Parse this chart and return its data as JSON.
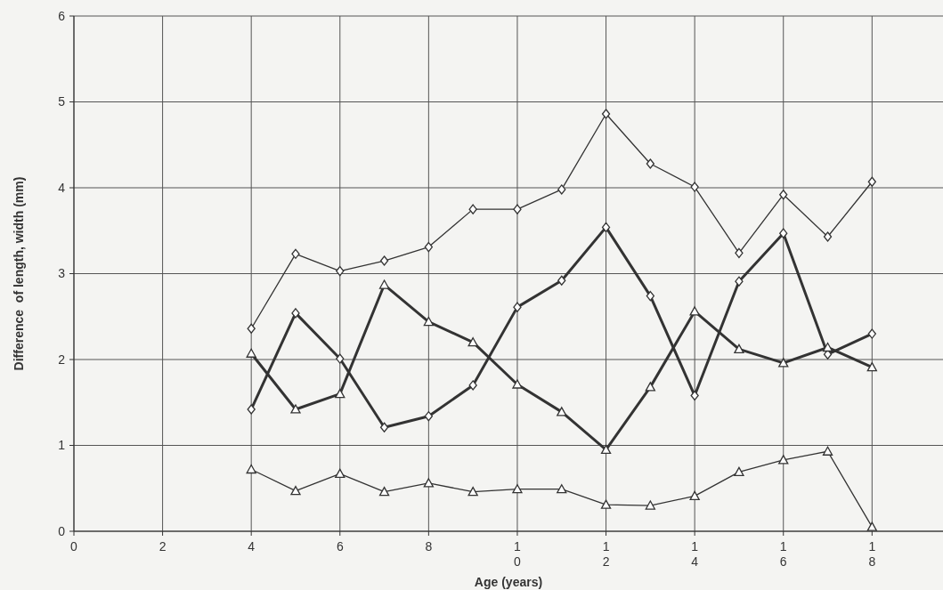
{
  "chart_data": {
    "type": "line",
    "xlabel": "Age (years)",
    "ylabel": "Difference  of length, width (mm)",
    "x": [
      4,
      5,
      6,
      7,
      8,
      9,
      10,
      11,
      12,
      13,
      14,
      15,
      16,
      17,
      18
    ],
    "series": [
      {
        "color": "#333333",
        "marker": "diamond",
        "values": [
          2.36,
          3.23,
          3.03,
          3.15,
          3.31,
          3.75,
          3.75,
          3.98,
          4.86,
          4.28,
          4.01,
          3.24,
          3.92,
          3.43,
          4.07
        ]
      },
      {
        "color": "#333333",
        "marker": "diamond",
        "values": [
          1.42,
          2.54,
          2.01,
          1.21,
          1.34,
          1.7,
          2.61,
          2.92,
          3.54,
          2.74,
          1.58,
          2.91,
          3.47,
          2.06,
          2.3
        ]
      },
      {
        "color": "#333333",
        "marker": "triangle",
        "values": [
          2.07,
          1.42,
          1.6,
          2.87,
          2.44,
          2.2,
          1.71,
          1.39,
          0.95,
          1.68,
          2.56,
          2.12,
          1.96,
          2.14,
          1.91
        ]
      },
      {
        "color": "#333333",
        "marker": "triangle",
        "values": [
          0.72,
          0.47,
          0.67,
          0.46,
          0.56,
          0.46,
          0.49,
          0.49,
          0.31,
          0.3,
          0.41,
          0.69,
          0.83,
          0.93,
          0.05
        ]
      }
    ],
    "xlim": [
      0,
      19.6
    ],
    "xticks": [
      0,
      2,
      4,
      6,
      8,
      10,
      12,
      14,
      16,
      18
    ],
    "ylim": [
      0,
      6
    ],
    "yticks": [
      0,
      1,
      2,
      3,
      4,
      5,
      6
    ],
    "grid": true,
    "line_style": "solid"
  }
}
